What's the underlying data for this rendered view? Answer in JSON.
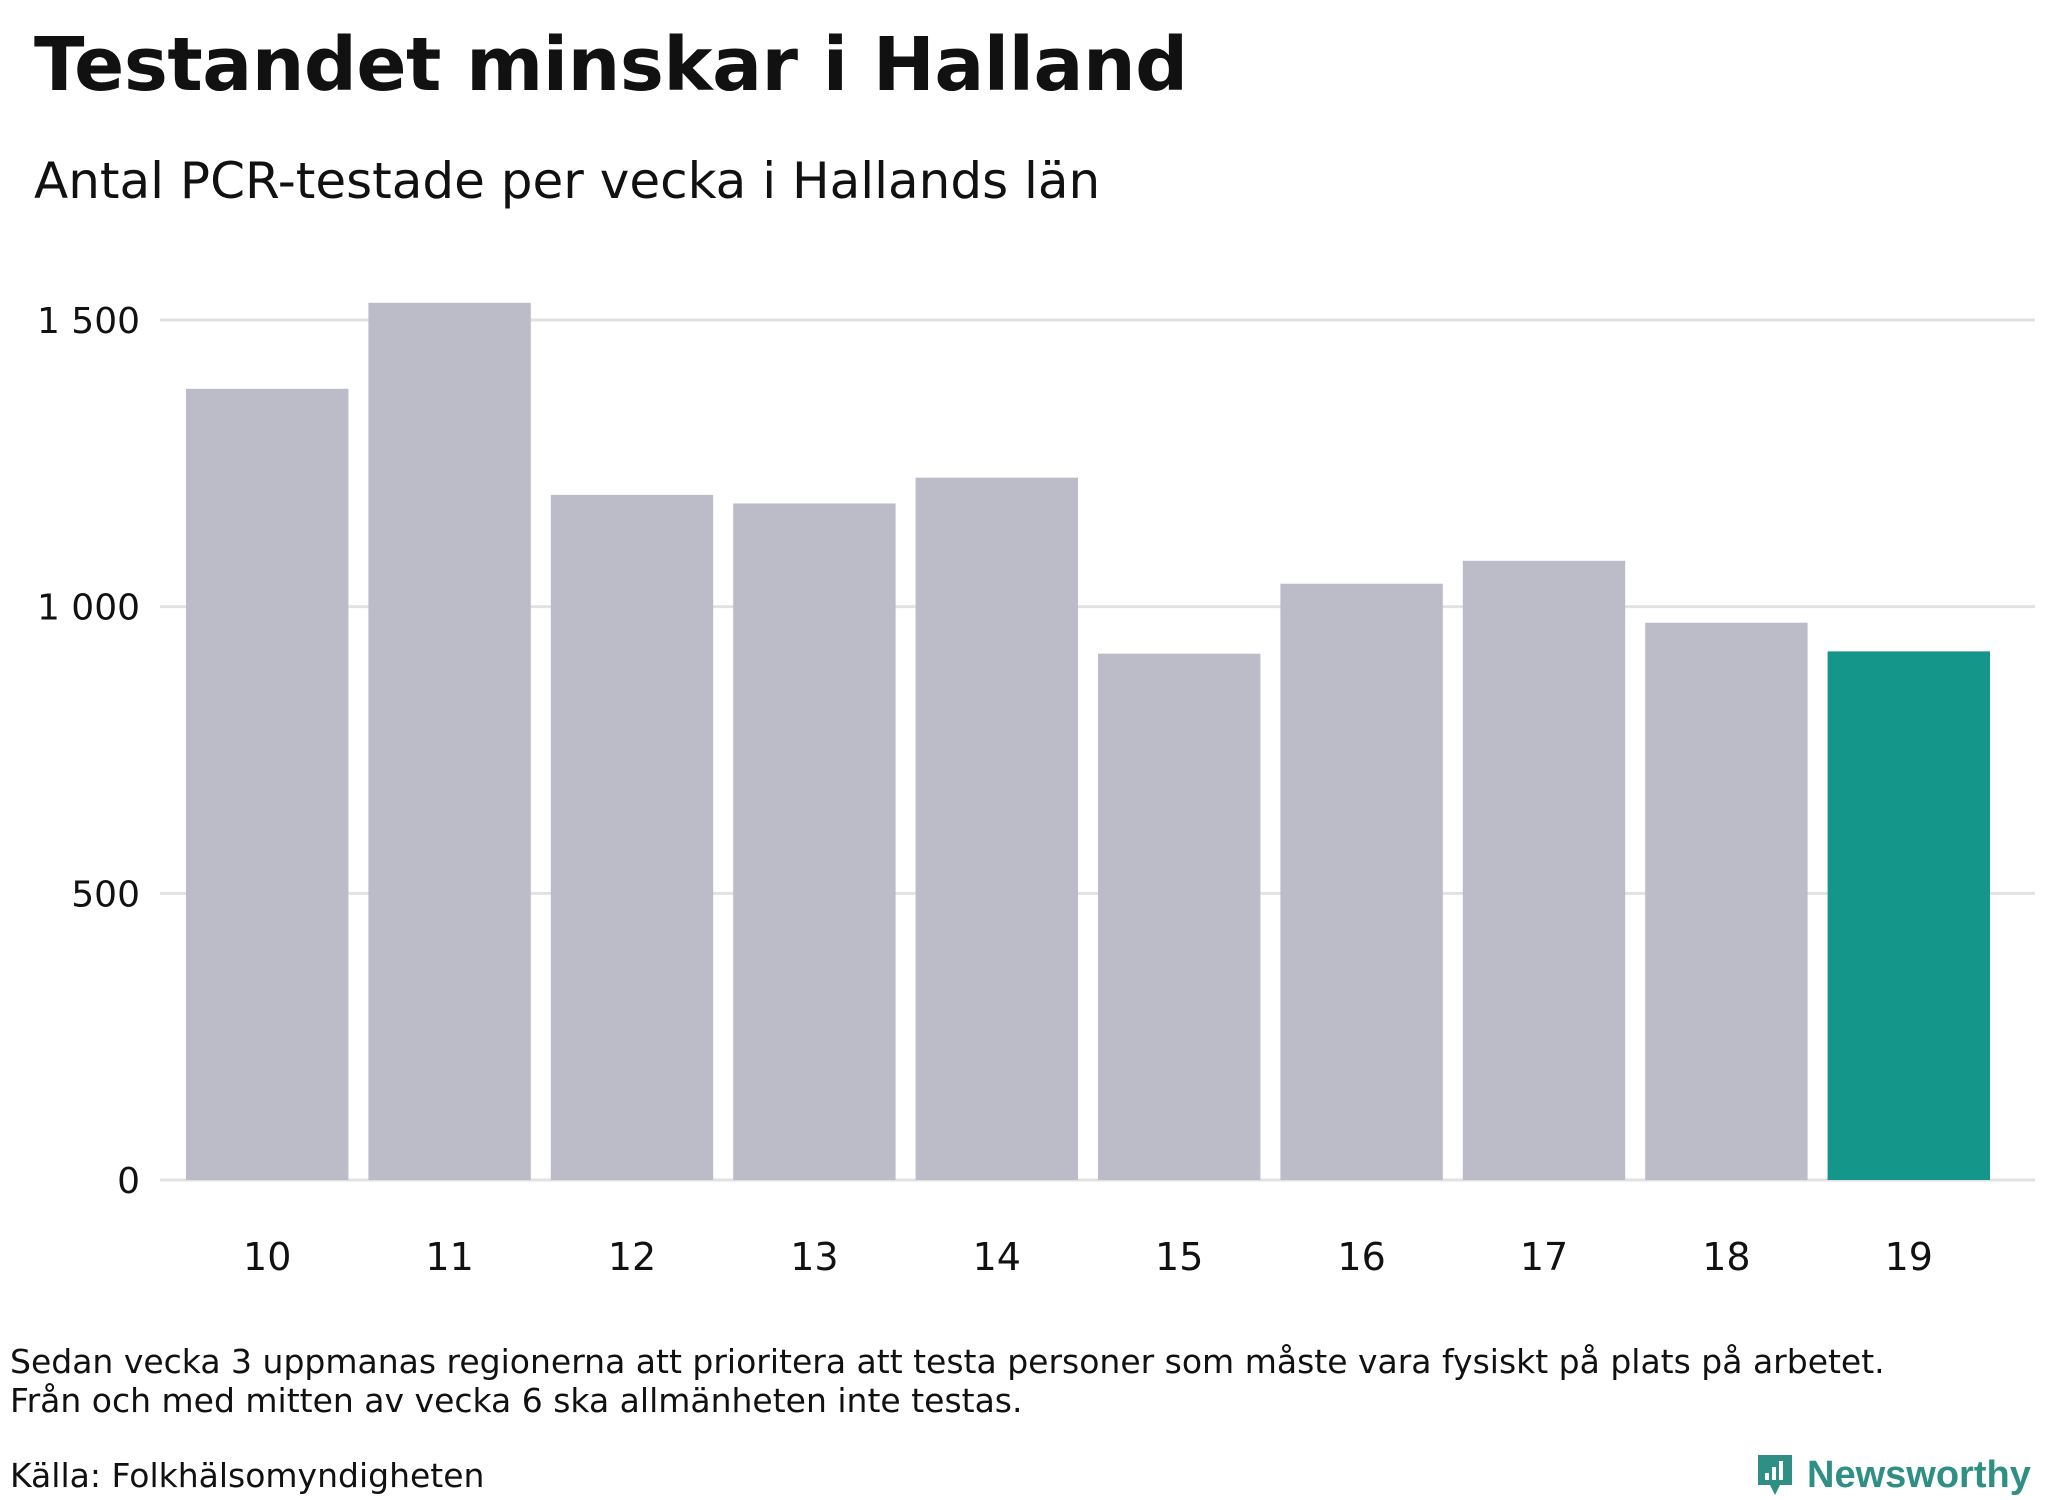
{
  "header": {
    "title": "Testandet minskar i Halland",
    "subtitle": "Antal PCR-testade per vecka i Hallands län"
  },
  "notes": {
    "line1": "Sedan vecka 3 uppmanas regionerna att prioritera att testa personer som måste vara fysiskt på plats på arbetet.",
    "line2": "Från och med mitten av vecka 6 ska allmänheten inte testas."
  },
  "source": "Källa: Folkhälsomyndigheten",
  "brand": {
    "name": "Newsworthy",
    "icon": "newsworthy-logo-icon"
  },
  "colors": {
    "bar_default": "#bcbbc8",
    "bar_highlight": "#14968a",
    "gridline": "#e2e2e2",
    "text": "#111111",
    "brand": "#2f8f84"
  },
  "chart_data": {
    "type": "bar",
    "title": "Testandet minskar i Halland",
    "subtitle": "Antal PCR-testade per vecka i Hallands län",
    "xlabel": "",
    "ylabel": "",
    "categories": [
      "10",
      "11",
      "12",
      "13",
      "14",
      "15",
      "16",
      "17",
      "18",
      "19"
    ],
    "values": [
      1380,
      1530,
      1195,
      1180,
      1225,
      918,
      1040,
      1080,
      972,
      922
    ],
    "highlight_index": 9,
    "ylim": [
      0,
      1500
    ],
    "yticks": [
      0,
      500,
      1000,
      1500
    ],
    "ytick_labels": [
      "0",
      "500",
      "1 000",
      "1 500"
    ],
    "grid": true,
    "legend": "none"
  }
}
